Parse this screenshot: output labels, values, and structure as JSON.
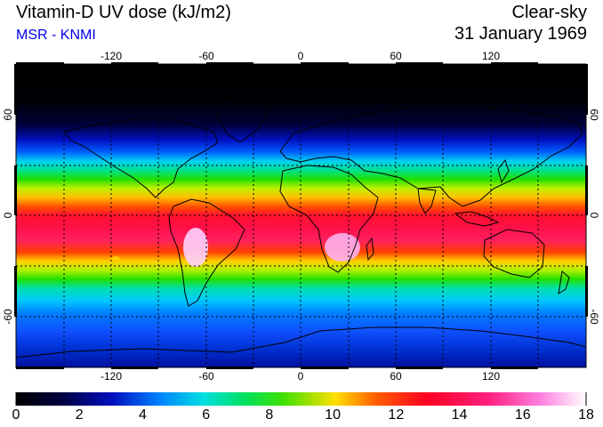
{
  "header": {
    "title": "Vitamin-D UV dose (kJ/m2)",
    "source": "MSR - KNMI",
    "condition": "Clear-sky",
    "date": "31 January 1969"
  },
  "map": {
    "lon_ticks": [
      "-120",
      "-60",
      "0",
      "60",
      "120"
    ],
    "lat_ticks_left": [
      "60",
      "0",
      "-60"
    ],
    "lat_ticks_right": [
      "60",
      "0",
      "-60"
    ]
  },
  "colorbar": {
    "labels": [
      "0",
      "2",
      "4",
      "6",
      "8",
      "10",
      "12",
      "14",
      "16",
      "18"
    ],
    "min": 0,
    "max": 18
  },
  "colors": {
    "source_text": "#0000ee",
    "frame": "#000000"
  }
}
